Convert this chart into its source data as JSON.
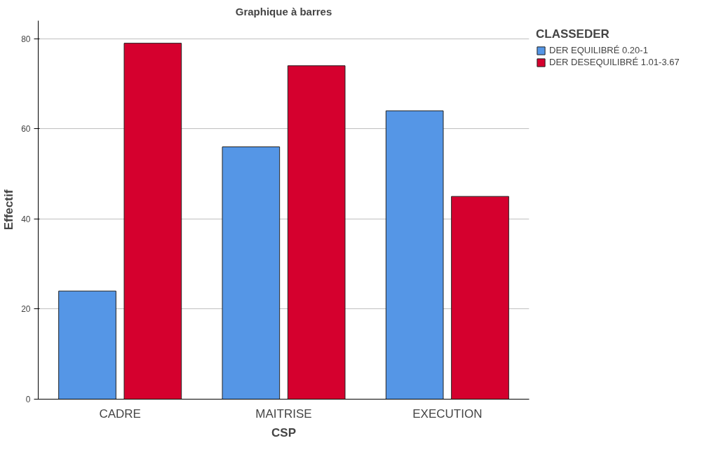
{
  "chart_data": {
    "type": "bar",
    "title": "Graphique à barres",
    "xlabel": "CSP",
    "ylabel": "Effectif",
    "legend_title": "CLASSEDER",
    "categories": [
      "CADRE",
      "MAITRISE",
      "EXECUTION"
    ],
    "series": [
      {
        "name": "DER EQUILIBRÉ 0.20-1",
        "color": "#5596e6",
        "values": [
          24,
          56,
          64
        ]
      },
      {
        "name": "DER DESEQUILIBRÉ 1.01-3.67",
        "color": "#d5002e",
        "values": [
          79,
          74,
          45
        ]
      }
    ],
    "ylim": [
      0,
      84
    ],
    "yticks": [
      0,
      20,
      40,
      60,
      80
    ],
    "grid": "y",
    "legend": "top right"
  }
}
